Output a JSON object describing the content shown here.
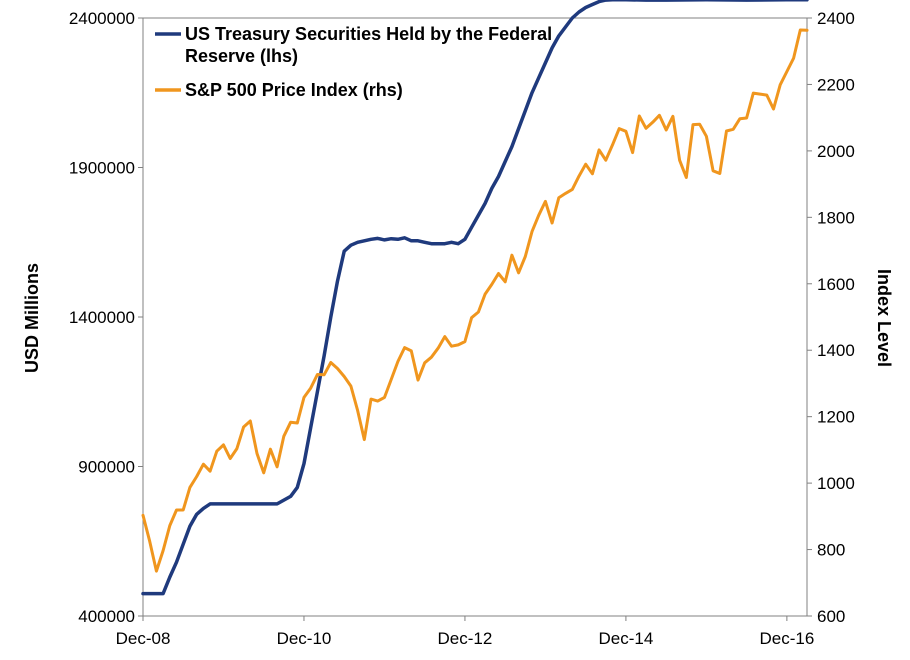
{
  "chart_data": {
    "type": "line",
    "title": "",
    "x_axis": {
      "tick_labels": [
        "Dec-08",
        "Dec-10",
        "Dec-12",
        "Dec-14",
        "Dec-16"
      ],
      "range": [
        "2008-12",
        "2017-03"
      ]
    },
    "y_left": {
      "label": "USD Millions",
      "ticks": [
        "400000",
        "900000",
        "1400000",
        "1900000",
        "2400000"
      ],
      "range": [
        400000,
        2400000
      ]
    },
    "y_right": {
      "label": "Index Level",
      "ticks": [
        "600",
        "800",
        "1000",
        "1200",
        "1400",
        "1600",
        "1800",
        "2000",
        "2200",
        "2400"
      ],
      "range": [
        600,
        2400
      ]
    },
    "legend_position": "top-left",
    "grid": false,
    "series": [
      {
        "name": "US Treasury Securities Held by the Federal Reserve (lhs)",
        "legend_lines": [
          "US Treasury Securities Held by the Federal",
          "Reserve (lhs)"
        ],
        "axis": "left",
        "color": "#1f3a7d",
        "x": [
          "2008-12",
          "2009-02",
          "2009-03",
          "2009-04",
          "2009-05",
          "2009-06",
          "2009-07",
          "2009-08",
          "2009-09",
          "2009-10",
          "2009-12",
          "2010-02",
          "2010-05",
          "2010-08",
          "2010-10",
          "2010-11",
          "2010-12",
          "2011-01",
          "2011-02",
          "2011-03",
          "2011-04",
          "2011-05",
          "2011-06",
          "2011-07",
          "2011-08",
          "2011-09",
          "2011-10",
          "2011-11",
          "2011-12",
          "2012-01",
          "2012-02",
          "2012-03",
          "2012-04",
          "2012-05",
          "2012-06",
          "2012-07",
          "2012-08",
          "2012-09",
          "2012-10",
          "2012-11",
          "2012-12",
          "2013-01",
          "2013-02",
          "2013-03",
          "2013-04",
          "2013-05",
          "2013-06",
          "2013-07",
          "2013-08",
          "2013-09",
          "2013-10",
          "2013-11",
          "2013-12",
          "2014-01",
          "2014-02",
          "2014-03",
          "2014-04",
          "2014-05",
          "2014-06",
          "2014-07",
          "2014-08",
          "2014-09",
          "2014-10",
          "2014-11",
          "2014-12",
          "2015-03",
          "2015-06",
          "2015-12",
          "2016-06",
          "2016-12",
          "2017-03"
        ],
        "values": [
          475000,
          475000,
          475000,
          530000,
          580000,
          640000,
          700000,
          740000,
          760000,
          775000,
          775000,
          775000,
          775000,
          775000,
          800000,
          830000,
          910000,
          1030000,
          1150000,
          1270000,
          1400000,
          1520000,
          1620000,
          1640000,
          1650000,
          1655000,
          1660000,
          1663000,
          1658000,
          1662000,
          1660000,
          1665000,
          1655000,
          1655000,
          1650000,
          1645000,
          1645000,
          1645000,
          1650000,
          1645000,
          1660000,
          1700000,
          1740000,
          1780000,
          1830000,
          1870000,
          1920000,
          1970000,
          2030000,
          2090000,
          2150000,
          2200000,
          2250000,
          2300000,
          2340000,
          2370000,
          2400000,
          2420000,
          2435000,
          2445000,
          2455000,
          2460000,
          2461000,
          2461000,
          2461000,
          2460000,
          2460000,
          2461000,
          2460000,
          2461000,
          2461000
        ]
      },
      {
        "name": "S&P 500 Price Index (rhs)",
        "legend_lines": [
          "S&P 500 Price Index (rhs)"
        ],
        "axis": "right",
        "color": "#f0961e",
        "x": [
          "2008-12",
          "2009-01",
          "2009-02",
          "2009-03",
          "2009-04",
          "2009-05",
          "2009-06",
          "2009-07",
          "2009-08",
          "2009-09",
          "2009-10",
          "2009-11",
          "2009-12",
          "2010-01",
          "2010-02",
          "2010-03",
          "2010-04",
          "2010-05",
          "2010-06",
          "2010-07",
          "2010-08",
          "2010-09",
          "2010-10",
          "2010-11",
          "2010-12",
          "2011-01",
          "2011-02",
          "2011-03",
          "2011-04",
          "2011-05",
          "2011-06",
          "2011-07",
          "2011-08",
          "2011-09",
          "2011-10",
          "2011-11",
          "2011-12",
          "2012-01",
          "2012-02",
          "2012-03",
          "2012-04",
          "2012-05",
          "2012-06",
          "2012-07",
          "2012-08",
          "2012-09",
          "2012-10",
          "2012-11",
          "2012-12",
          "2013-01",
          "2013-02",
          "2013-03",
          "2013-04",
          "2013-05",
          "2013-06",
          "2013-07",
          "2013-08",
          "2013-09",
          "2013-10",
          "2013-11",
          "2013-12",
          "2014-01",
          "2014-02",
          "2014-03",
          "2014-04",
          "2014-05",
          "2014-06",
          "2014-07",
          "2014-08",
          "2014-09",
          "2014-10",
          "2014-11",
          "2014-12",
          "2015-01",
          "2015-02",
          "2015-03",
          "2015-04",
          "2015-05",
          "2015-06",
          "2015-07",
          "2015-08",
          "2015-09",
          "2015-10",
          "2015-11",
          "2015-12",
          "2016-01",
          "2016-02",
          "2016-03",
          "2016-04",
          "2016-05",
          "2016-06",
          "2016-07",
          "2016-08",
          "2016-09",
          "2016-10",
          "2016-11",
          "2016-12",
          "2017-01",
          "2017-02",
          "2017-03"
        ],
        "values": [
          903,
          825,
          735,
          797,
          872,
          919,
          919,
          987,
          1020,
          1057,
          1036,
          1096,
          1115,
          1074,
          1104,
          1169,
          1187,
          1089,
          1031,
          1102,
          1049,
          1141,
          1183,
          1181,
          1258,
          1286,
          1327,
          1326,
          1363,
          1345,
          1321,
          1292,
          1219,
          1131,
          1253,
          1247,
          1258,
          1312,
          1366,
          1408,
          1398,
          1310,
          1362,
          1379,
          1406,
          1441,
          1412,
          1416,
          1426,
          1498,
          1515,
          1569,
          1598,
          1631,
          1606,
          1686,
          1633,
          1682,
          1757,
          1806,
          1848,
          1783,
          1859,
          1872,
          1884,
          1924,
          1960,
          1931,
          2003,
          1972,
          2018,
          2067,
          2059,
          1995,
          2105,
          2068,
          2086,
          2107,
          2063,
          2104,
          1972,
          1920,
          2079,
          2080,
          2044,
          1940,
          1932,
          2060,
          2065,
          2097,
          2099,
          2174,
          2171,
          2168,
          2126,
          2199,
          2239,
          2279,
          2364,
          2363
        ]
      }
    ]
  }
}
